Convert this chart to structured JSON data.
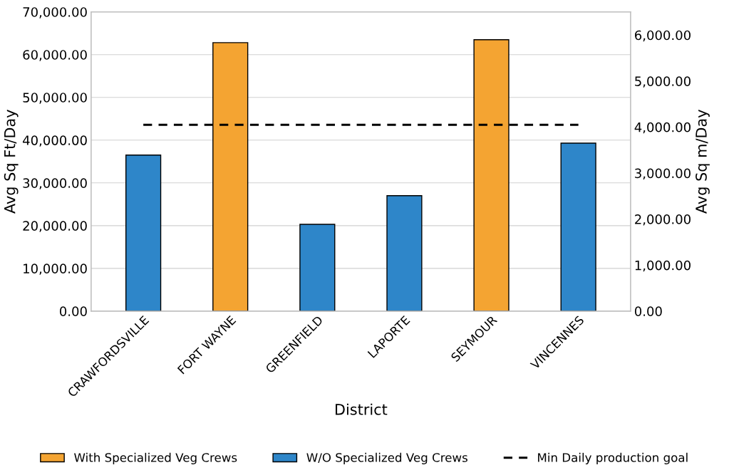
{
  "chart_data": {
    "type": "bar",
    "xlabel": "District",
    "ylabel": "Avg Sq Ft/Day",
    "y2label": "Avg Sq m/Day",
    "categories": [
      "CRAWFORDSVILLE",
      "FORT WAYNE",
      "GREENFIELD",
      "LAPORTE",
      "SEYMOUR",
      "VINCENNES"
    ],
    "series": [
      {
        "name": "With Specialized Veg Crews",
        "color": "#f4a432",
        "values": [
          null,
          62800,
          null,
          null,
          63500,
          null
        ]
      },
      {
        "name": "W/O Specialized Veg Crews",
        "color": "#2e86c9",
        "values": [
          36500,
          null,
          20300,
          27000,
          null,
          39300
        ]
      },
      {
        "name": "Min Daily production goal",
        "type": "line",
        "axis": "y2",
        "color": "#000000",
        "line_style": "dashed",
        "marker": "none",
        "values": [
          4050,
          4050,
          4050,
          4050,
          4050,
          4050
        ]
      }
    ],
    "ylim": [
      0,
      70000
    ],
    "yticks": [
      {
        "value": 0,
        "label": "0.00"
      },
      {
        "value": 10000,
        "label": "10,000.00"
      },
      {
        "value": 20000,
        "label": "20,000.00"
      },
      {
        "value": 30000,
        "label": "30,000.00"
      },
      {
        "value": 40000,
        "label": "40,000.00"
      },
      {
        "value": 50000,
        "label": "50,000.00"
      },
      {
        "value": 60000,
        "label": "60,000.00"
      },
      {
        "value": 70000,
        "label": "70,000.00"
      }
    ],
    "y2lim": [
      0,
      6503
    ],
    "y2ticks": [
      {
        "value": 0,
        "label": "0.00"
      },
      {
        "value": 1000,
        "label": "1,000.00"
      },
      {
        "value": 2000,
        "label": "2,000.00"
      },
      {
        "value": 3000,
        "label": "3,000.00"
      },
      {
        "value": 4000,
        "label": "4,000.00"
      },
      {
        "value": 5000,
        "label": "5,000.00"
      },
      {
        "value": 6000,
        "label": "6,000.00"
      }
    ],
    "grid": "y",
    "legend": "bottom"
  }
}
